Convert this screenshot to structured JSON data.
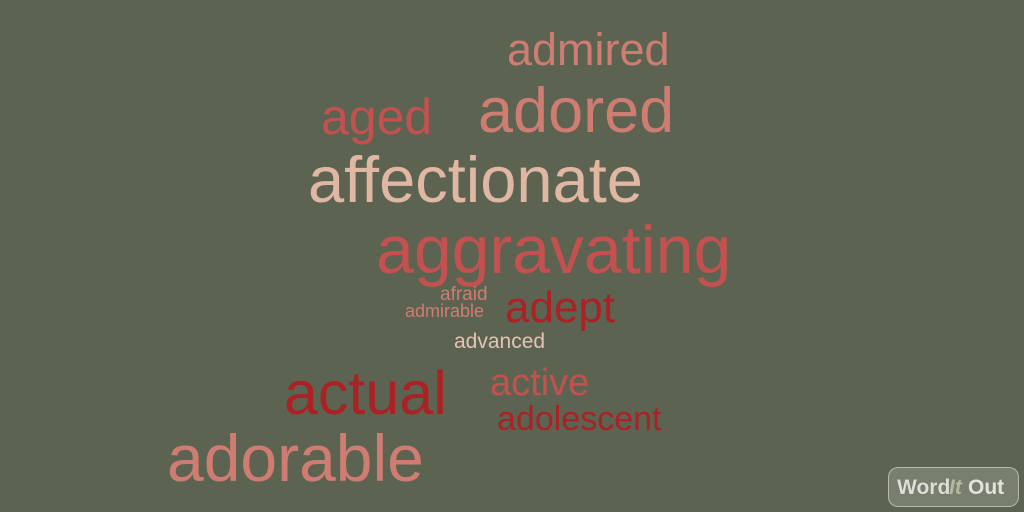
{
  "background_color": "#5c6451",
  "palette": [
    "#cf7c72",
    "#c2514f",
    "#dfb7a3",
    "#aa2126",
    "#e3c4b4"
  ],
  "words": {
    "admired": "admired",
    "aged": "aged",
    "adored": "adored",
    "affectionate": "affectionate",
    "aggravating": "aggravating",
    "afraid": "afraid",
    "admirable": "admirable",
    "adept": "adept",
    "advanced": "advanced",
    "actual": "actual",
    "active": "active",
    "adolescent": "adolescent",
    "adorable": "adorable"
  },
  "logo": {
    "part1": "Word",
    "part2": "It",
    "part3": "Out"
  }
}
